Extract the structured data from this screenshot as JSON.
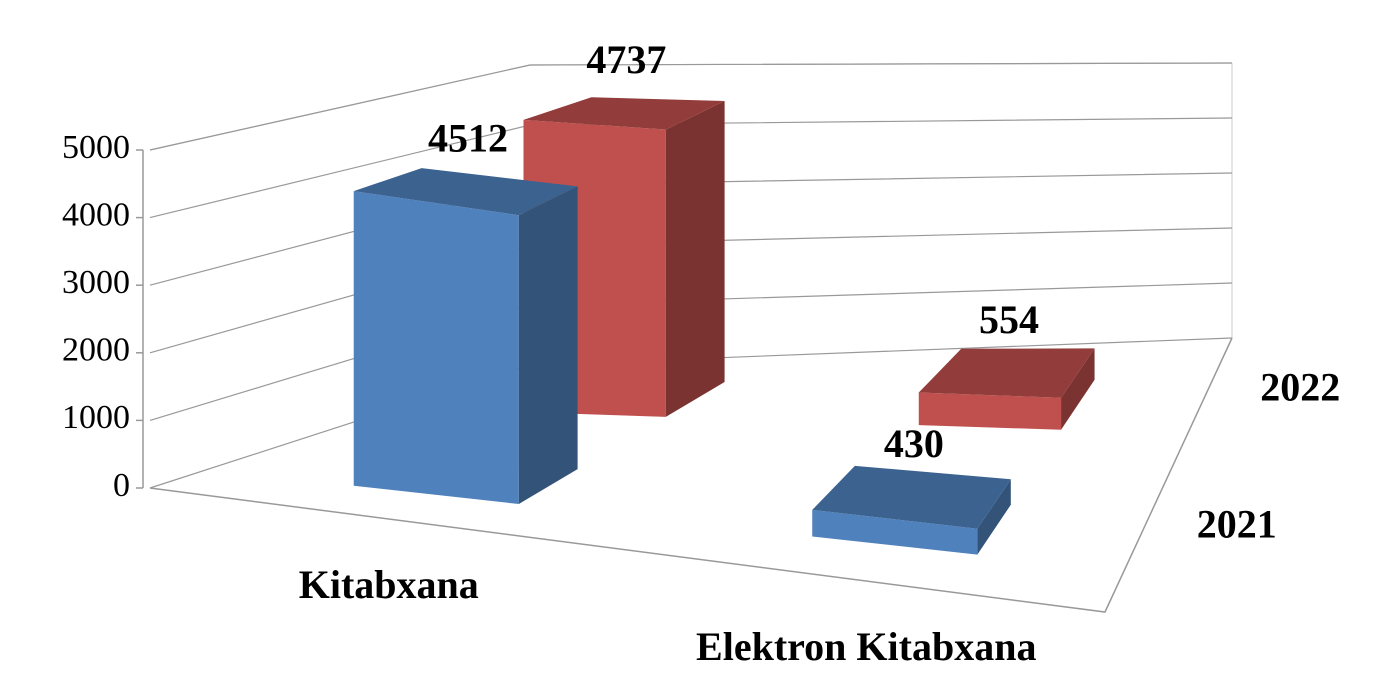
{
  "chart_data": {
    "type": "bar3d",
    "categories": [
      "Kitabxana",
      "Elektron Kitabxana"
    ],
    "series": [
      {
        "name": "2021",
        "color": "#4f81bd",
        "values": [
          4512,
          430
        ]
      },
      {
        "name": "2022",
        "color": "#c0504d",
        "values": [
          4737,
          554
        ]
      }
    ],
    "ylim": [
      0,
      5000
    ],
    "yticks": [
      0,
      1000,
      2000,
      3000,
      4000,
      5000
    ],
    "grid": true
  }
}
